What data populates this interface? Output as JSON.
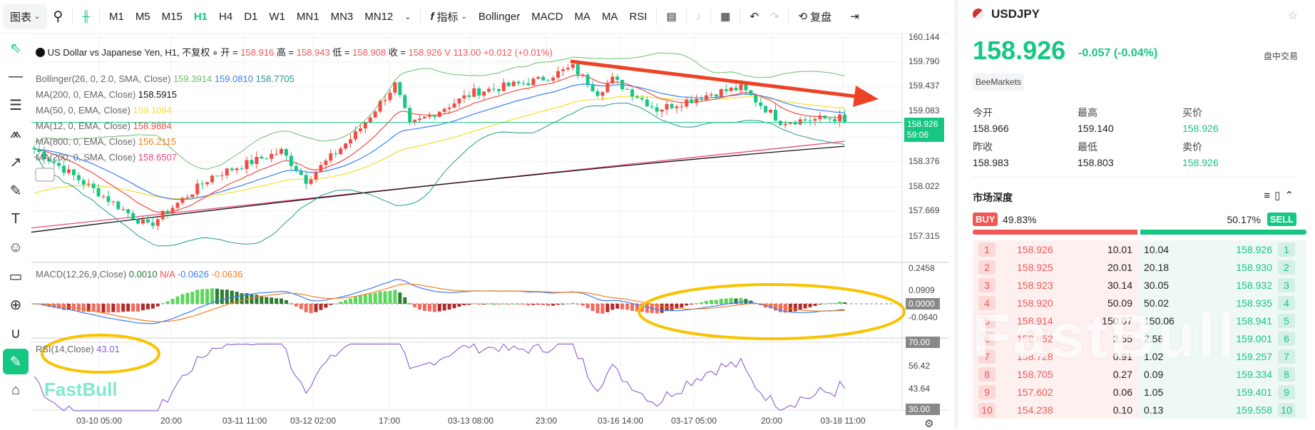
{
  "toolbar": {
    "chart_menu": "图表",
    "timeframes": [
      "M1",
      "M5",
      "M15",
      "H1",
      "H4",
      "D1",
      "W1",
      "MN1",
      "MN3",
      "MN12"
    ],
    "active_timeframe": "H1",
    "indicators_label": "指标",
    "indicator_shortcuts": [
      "Bollinger",
      "MACD",
      "MA",
      "MA",
      "RSI"
    ],
    "replay_label": "复盘"
  },
  "legend": {
    "title": "US Dollar vs Japanese Yen, H1, 不复权",
    "open_label": "开 =",
    "open": "158.916",
    "high_label": "高 =",
    "high": "158.943",
    "low_label": "低 =",
    "low": "158.908",
    "close_label": "收 =",
    "close": "158.926",
    "volume": "V 113.00",
    "change": "+0.012 (+0.01%)",
    "indicators": [
      {
        "name": "Bollinger(26, 0, 2.0, SMA, Close)",
        "values": [
          {
            "v": "159.3914",
            "c": "#6abf69"
          },
          {
            "v": "159.0810",
            "c": "#3b7dfb"
          },
          {
            "v": "158.7705",
            "c": "#1f9c8a"
          }
        ]
      },
      {
        "name": "MA(200, 0, EMA, Close)",
        "values": [
          {
            "v": "158.5915",
            "c": "#111111"
          }
        ]
      },
      {
        "name": "MA(50, 0, EMA, Close)",
        "values": [
          {
            "v": "159.1094",
            "c": "#f5e13a"
          }
        ]
      },
      {
        "name": "MA(12, 0, EMA, Close)",
        "values": [
          {
            "v": "158.9884",
            "c": "#f04e45"
          }
        ]
      },
      {
        "name": "MA(800, 0, EMA, Close)",
        "values": [
          {
            "v": "156.2115",
            "c": "#f58220"
          }
        ]
      },
      {
        "name": "MA(200, 0, SMA, Close)",
        "values": [
          {
            "v": "158.6507",
            "c": "#e84a7f"
          }
        ]
      }
    ],
    "macd_name": "MACD(12,26,9,Close)",
    "macd_values": [
      {
        "v": "0.0010",
        "c": "#1e7a2e"
      },
      {
        "v": "N/A",
        "c": "#f04e45"
      },
      {
        "v": "-0.0626",
        "c": "#3b7dfb"
      },
      {
        "v": "-0.0636",
        "c": "#f58220"
      }
    ],
    "rsi_name": "RSI(14,Close)",
    "rsi_value": "43.01"
  },
  "price_axis": [
    "160.144",
    "159.790",
    "159.437",
    "159.083",
    "158.376",
    "158.022",
    "157.669",
    "157.315"
  ],
  "current_price_tag": {
    "price": "158.926",
    "countdown": "59:06"
  },
  "macd_axis": [
    "0.2458",
    "0.0909",
    "0.0000",
    "-0.0640"
  ],
  "rsi_axis": [
    "70.00",
    "56.42",
    "43.64",
    "30.00"
  ],
  "time_axis": [
    "03-10 05:00",
    "20:00",
    "03-11 11:00",
    "03-12 02:00",
    "17:00",
    "03-13 08:00",
    "23:00",
    "03-16 14:00",
    "03-17 05:00",
    "20:00",
    "03-18 11:00"
  ],
  "watermark": "FastBull",
  "chart_data": {
    "type": "candlestick",
    "symbol": "USDJPY",
    "timeframe": "H1",
    "approx_close_path": [
      [
        0,
        158.55
      ],
      [
        23,
        157.46
      ],
      [
        36,
        158.17
      ],
      [
        50,
        158.52
      ],
      [
        55,
        158.11
      ],
      [
        65,
        158.76
      ],
      [
        73,
        159.46
      ],
      [
        76,
        158.88
      ],
      [
        89,
        159.35
      ],
      [
        102,
        159.52
      ],
      [
        109,
        159.7
      ],
      [
        114,
        159.35
      ],
      [
        117,
        159.53
      ],
      [
        126,
        159.11
      ],
      [
        138,
        159.35
      ],
      [
        143,
        159.41
      ],
      [
        151,
        158.94
      ],
      [
        163,
        158.99
      ],
      [
        164,
        158.926
      ]
    ],
    "colors": {
      "up": "#f04e45",
      "down": "#16c784"
    }
  },
  "panel": {
    "symbol": "USDJPY",
    "price": "158.926",
    "change": "-0.057",
    "change_pct": "(-0.04%)",
    "session": "盘中交易",
    "broker": "BeeMarkets",
    "stats": [
      {
        "k": "今开",
        "v": "158.966"
      },
      {
        "k": "最高",
        "v": "159.140"
      },
      {
        "k": "买价",
        "v": "158.926"
      },
      {
        "k": "昨收",
        "v": "158.983"
      },
      {
        "k": "最低",
        "v": "158.803"
      },
      {
        "k": "卖价",
        "v": "158.926"
      }
    ],
    "depth_title": "市场深度",
    "buy_label": "BUY",
    "buy_pct": "49.83%",
    "sell_label": "SELL",
    "sell_pct": "50.17%",
    "buy_fraction": 0.4983,
    "book": [
      {
        "n": "1",
        "bp": "158.926",
        "bv": "10.01",
        "av": "10.04",
        "ap": "158.926"
      },
      {
        "n": "2",
        "bp": "158.925",
        "bv": "20.01",
        "av": "20.18",
        "ap": "158.930"
      },
      {
        "n": "3",
        "bp": "158.923",
        "bv": "30.14",
        "av": "30.05",
        "ap": "158.932"
      },
      {
        "n": "4",
        "bp": "158.920",
        "bv": "50.09",
        "av": "50.02",
        "ap": "158.935"
      },
      {
        "n": "5",
        "bp": "158.914",
        "bv": "150.07",
        "av": "150.06",
        "ap": "158.941"
      },
      {
        "n": "6",
        "bp": "158.852",
        "bv": "2.55",
        "av": "2.58",
        "ap": "159.001"
      },
      {
        "n": "7",
        "bp": "158.728",
        "bv": "0.91",
        "av": "1.02",
        "ap": "159.257"
      },
      {
        "n": "8",
        "bp": "158.705",
        "bv": "0.27",
        "av": "0.09",
        "ap": "159.334"
      },
      {
        "n": "9",
        "bp": "157.602",
        "bv": "0.06",
        "av": "1.05",
        "ap": "159.401"
      },
      {
        "n": "10",
        "bp": "154.238",
        "bv": "0.10",
        "av": "0.13",
        "ap": "159.558"
      }
    ]
  },
  "colors": {
    "accent": "#16c784",
    "down": "#f25757",
    "annotation_arrow": "#ee4226",
    "annotation_ellipse": "#f9c300"
  }
}
